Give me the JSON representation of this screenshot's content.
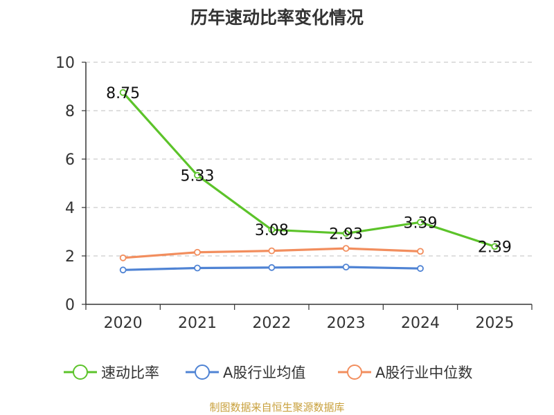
{
  "title": "历年速动比率变化情况",
  "source": "制图数据来自恒生聚源数据库",
  "chart_data": {
    "type": "line",
    "title": "历年速动比率变化情况",
    "categories": [
      "2020",
      "2021",
      "2022",
      "2023",
      "2024",
      "2025"
    ],
    "ylim": [
      0,
      10
    ],
    "yticks": [
      0,
      2,
      4,
      6,
      8,
      10
    ],
    "grid": true,
    "legend_position": "bottom",
    "series": [
      {
        "name": "速动比率",
        "color": "#5cc32a",
        "values": [
          8.75,
          5.33,
          3.08,
          2.93,
          3.39,
          2.39
        ],
        "labels": [
          "8.75",
          "5.33",
          "3.08",
          "2.93",
          "3.39",
          "2.39"
        ],
        "show_labels": true
      },
      {
        "name": "A股行业均值",
        "color": "#4f83d4",
        "values": [
          1.42,
          1.5,
          1.52,
          1.54,
          1.48,
          null
        ],
        "show_labels": false
      },
      {
        "name": "A股行业中位数",
        "color": "#f28e5e",
        "values": [
          1.92,
          2.15,
          2.21,
          2.31,
          2.19,
          null
        ],
        "show_labels": false
      }
    ]
  }
}
